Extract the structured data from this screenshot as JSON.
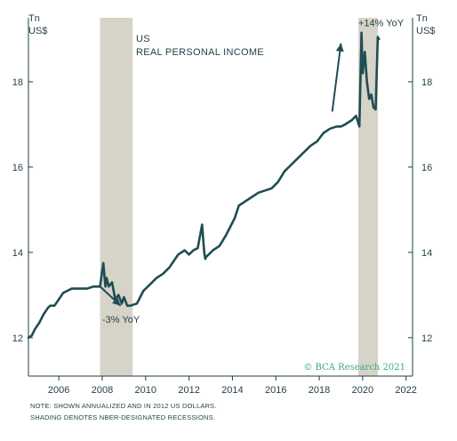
{
  "chart_data": {
    "type": "line",
    "title": "US",
    "subtitle": "REAL PERSONAL INCOME",
    "unit_left": [
      "Tn",
      "US$"
    ],
    "unit_right": [
      "Tn",
      "US$"
    ],
    "xlabel": "",
    "ylabel": "",
    "xlim": [
      2004.6,
      2022.3
    ],
    "ylim": [
      11.1,
      19.5
    ],
    "x_ticks": [
      2006,
      2008,
      2010,
      2012,
      2014,
      2016,
      2018,
      2020,
      2022
    ],
    "y_ticks": [
      12,
      14,
      16,
      18
    ],
    "grid": false,
    "line_color": "#1f4d52",
    "shade_color": "#d6d3c8",
    "recessions": [
      {
        "start": 2007.9,
        "end": 2009.4
      },
      {
        "start": 2019.8,
        "end": 2020.7
      }
    ],
    "series": [
      {
        "name": "",
        "x": [
          2004.6,
          2004.75,
          2004.9,
          2005.1,
          2005.3,
          2005.5,
          2005.6,
          2005.8,
          2006.0,
          2006.2,
          2006.4,
          2006.6,
          2006.8,
          2007.0,
          2007.3,
          2007.6,
          2007.9,
          2008.05,
          2008.15,
          2008.2,
          2008.3,
          2008.45,
          2008.6,
          2008.75,
          2008.9,
          2009.0,
          2009.15,
          2009.3,
          2009.6,
          2009.9,
          2010.2,
          2010.5,
          2010.8,
          2011.1,
          2011.3,
          2011.5,
          2011.8,
          2012.0,
          2012.2,
          2012.4,
          2012.6,
          2012.7,
          2012.75,
          2012.8,
          2012.9,
          2013.1,
          2013.4,
          2013.7,
          2013.9,
          2014.1,
          2014.3,
          2014.6,
          2014.9,
          2015.2,
          2015.5,
          2015.8,
          2016.1,
          2016.4,
          2016.7,
          2017.0,
          2017.3,
          2017.6,
          2017.9,
          2018.2,
          2018.5,
          2018.8,
          2019.0,
          2019.2,
          2019.5,
          2019.7,
          2019.85,
          2019.95,
          2020.0,
          2020.1,
          2020.2,
          2020.3,
          2020.4,
          2020.5,
          2020.6,
          2020.7,
          2020.75
        ],
        "values": [
          12.0,
          12.05,
          12.2,
          12.35,
          12.55,
          12.7,
          12.75,
          12.75,
          12.9,
          13.05,
          13.1,
          13.15,
          13.15,
          13.15,
          13.15,
          13.2,
          13.2,
          13.75,
          13.2,
          13.4,
          13.2,
          13.3,
          12.9,
          13.0,
          12.8,
          12.95,
          12.75,
          12.75,
          12.8,
          13.1,
          13.25,
          13.4,
          13.5,
          13.65,
          13.8,
          13.95,
          14.05,
          13.95,
          14.05,
          14.1,
          14.65,
          14.0,
          13.85,
          13.9,
          13.95,
          14.05,
          14.15,
          14.4,
          14.6,
          14.8,
          15.1,
          15.2,
          15.3,
          15.4,
          15.45,
          15.5,
          15.65,
          15.9,
          16.05,
          16.2,
          16.35,
          16.5,
          16.6,
          16.8,
          16.9,
          16.95,
          16.95,
          17.0,
          17.1,
          17.2,
          16.95,
          19.15,
          18.2,
          18.7,
          18.0,
          17.6,
          17.7,
          17.4,
          17.35,
          19.05,
          19.0
        ]
      }
    ],
    "annotations": [
      {
        "text": "-3% YoY",
        "x": 2008.0,
        "y": 12.35
      },
      {
        "text": "+14% YoY",
        "x": 2019.8,
        "y": 19.3
      }
    ],
    "arrows": [
      {
        "from": [
          2007.9,
          13.2
        ],
        "to": [
          2008.85,
          12.75
        ]
      },
      {
        "from": [
          2018.6,
          17.3
        ],
        "to": [
          2019.0,
          18.9
        ]
      }
    ],
    "credit": "© BCA Research 2021"
  },
  "notes": [
    "NOTE: SHOWN ANNUALIZED AND IN 2012 US DOLLARS.",
    "SHADING DENOTES NBER-DESIGNATED RECESSIONS."
  ]
}
